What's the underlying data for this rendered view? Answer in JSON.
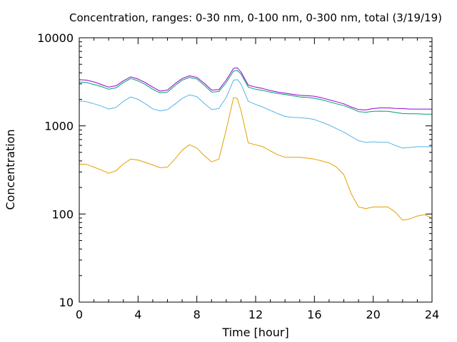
{
  "chart_data": {
    "type": "line",
    "title": "Concentration, ranges: 0-30 nm, 0-100 nm, 0-300 nm, total (3/19/19)",
    "xlabel": "Time [hour]",
    "ylabel": "Concentration",
    "xlim": [
      0,
      24
    ],
    "ylim": [
      10,
      10000
    ],
    "yscale": "log",
    "grid": false,
    "legend": "none",
    "x_ticks": [
      0,
      4,
      8,
      12,
      16,
      20,
      24
    ],
    "x_tick_labels": [
      "0",
      "4",
      "8",
      "12",
      "16",
      "20",
      "24"
    ],
    "y_ticks": [
      10,
      100,
      1000,
      10000
    ],
    "y_tick_labels": [
      "10",
      "100",
      "1000",
      "10000"
    ],
    "x": [
      0,
      0.5,
      1,
      1.5,
      2,
      2.5,
      3,
      3.5,
      4,
      4.5,
      5,
      5.5,
      6,
      6.5,
      7,
      7.5,
      8,
      8.5,
      9,
      9.5,
      10,
      10.5,
      10.75,
      11,
      11.5,
      12,
      12.5,
      13,
      13.5,
      14,
      14.5,
      15,
      15.5,
      16,
      16.5,
      17,
      17.5,
      18,
      18.5,
      19,
      19.5,
      20,
      20.5,
      21,
      21.5,
      22,
      22.5,
      23,
      23.5,
      24
    ],
    "series": [
      {
        "color": "#e69f00",
        "values": [
          370,
          365,
          340,
          315,
          290,
          310,
          370,
          420,
          410,
          385,
          360,
          335,
          340,
          420,
          530,
          610,
          560,
          460,
          390,
          420,
          900,
          2100,
          2050,
          1500,
          640,
          610,
          580,
          520,
          470,
          440,
          440,
          440,
          430,
          420,
          400,
          380,
          340,
          280,
          170,
          120,
          115,
          120,
          120,
          120,
          105,
          85,
          88,
          95,
          98,
          90
        ]
      },
      {
        "color": "#56b4e9",
        "values": [
          1920,
          1880,
          1780,
          1680,
          1550,
          1620,
          1900,
          2130,
          2000,
          1780,
          1560,
          1480,
          1530,
          1760,
          2050,
          2250,
          2150,
          1800,
          1530,
          1570,
          2100,
          3300,
          3350,
          3000,
          1900,
          1750,
          1630,
          1500,
          1380,
          1280,
          1250,
          1240,
          1220,
          1180,
          1100,
          1020,
          930,
          850,
          760,
          680,
          650,
          660,
          650,
          650,
          600,
          560,
          570,
          580,
          580,
          580
        ]
      },
      {
        "color": "#009e73",
        "values": [
          3150,
          3100,
          2950,
          2800,
          2600,
          2700,
          3100,
          3450,
          3250,
          2950,
          2600,
          2370,
          2420,
          2850,
          3300,
          3550,
          3400,
          2900,
          2420,
          2450,
          3100,
          4200,
          4250,
          3900,
          2750,
          2600,
          2520,
          2420,
          2330,
          2270,
          2200,
          2130,
          2100,
          2060,
          1980,
          1880,
          1780,
          1700,
          1580,
          1450,
          1430,
          1460,
          1470,
          1460,
          1420,
          1380,
          1370,
          1370,
          1360,
          1360
        ]
      },
      {
        "color": "#9400d3",
        "values": [
          3350,
          3300,
          3150,
          2950,
          2750,
          2850,
          3250,
          3600,
          3400,
          3100,
          2750,
          2480,
          2550,
          3000,
          3450,
          3700,
          3550,
          3050,
          2550,
          2580,
          3300,
          4500,
          4550,
          4100,
          2900,
          2750,
          2650,
          2520,
          2420,
          2350,
          2280,
          2220,
          2200,
          2170,
          2080,
          1980,
          1880,
          1780,
          1640,
          1530,
          1520,
          1570,
          1600,
          1600,
          1580,
          1570,
          1550,
          1550,
          1550,
          1550
        ]
      }
    ]
  }
}
